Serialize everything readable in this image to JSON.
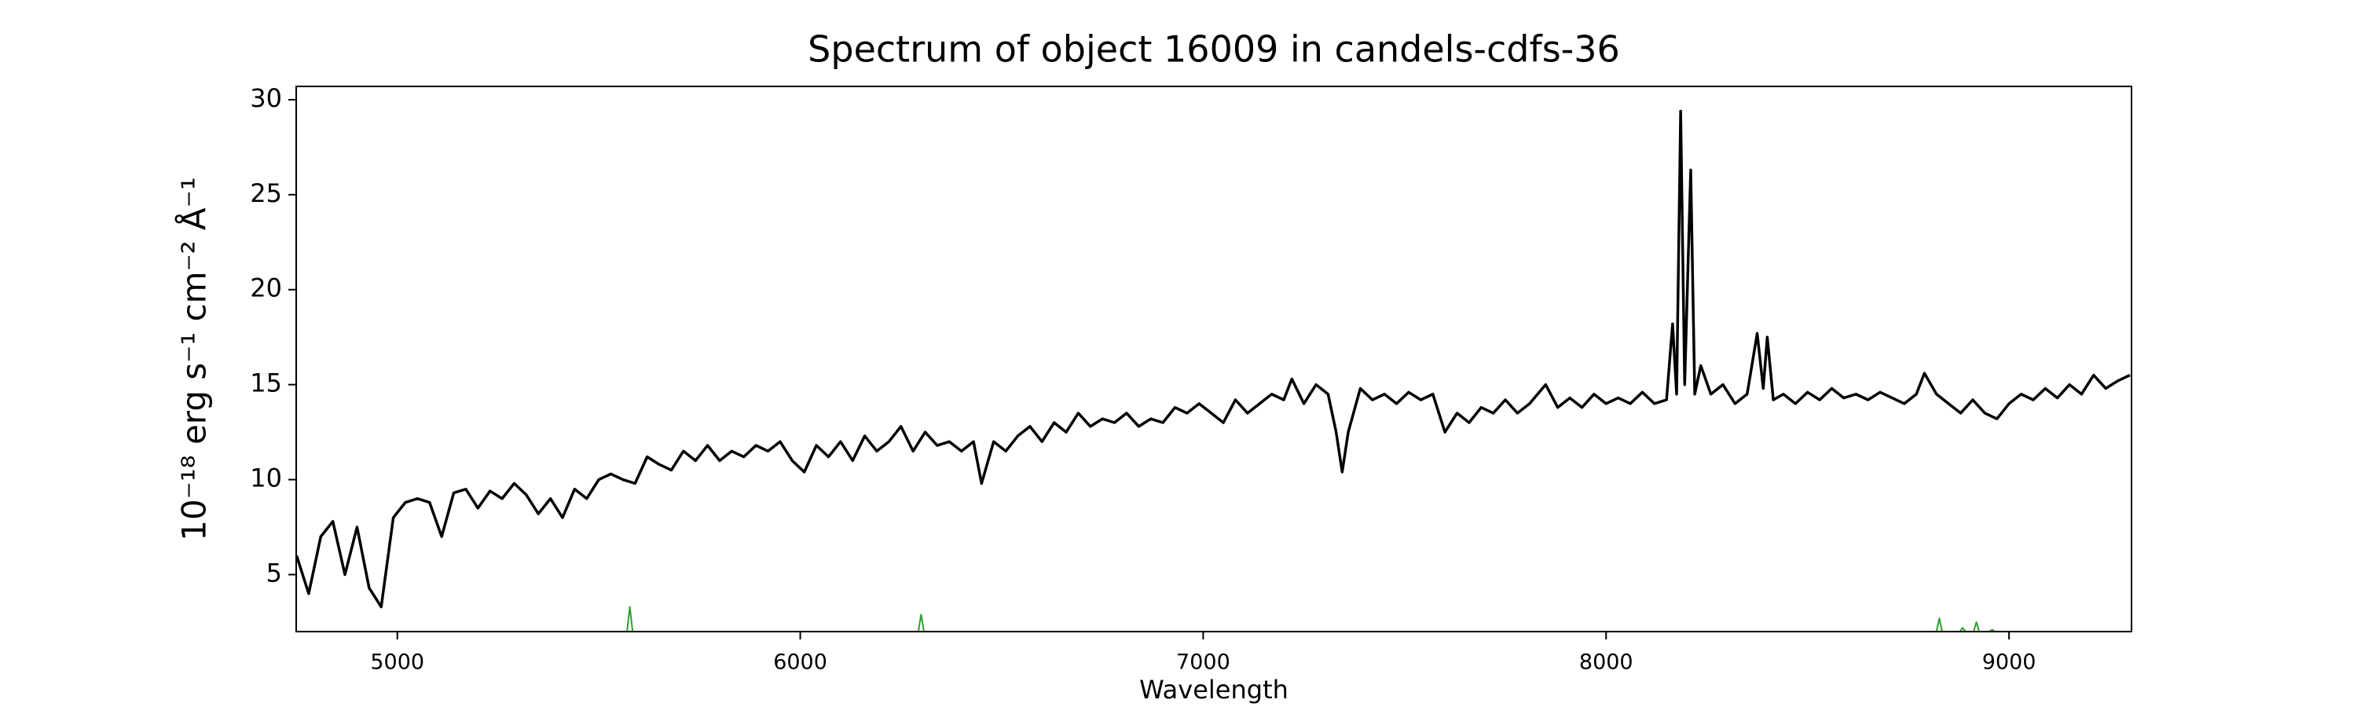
{
  "chart_data": {
    "type": "line",
    "title": "Spectrum of object 16009 in candels-cdfs-36",
    "xlabel": "Wavelength",
    "ylabel": "10⁻¹⁸ erg s⁻¹ cm⁻² Å⁻¹",
    "xlim": [
      4749,
      9304
    ],
    "xticks": [
      5000,
      6000,
      7000,
      8000,
      9000
    ],
    "ylim": [
      2.0,
      30.7
    ],
    "yticks": [
      5,
      10,
      15,
      20,
      25,
      30
    ],
    "grid": false,
    "series": [
      {
        "color": "#000000",
        "x": [
          4750,
          4780,
          4810,
          4840,
          4870,
          4900,
          4930,
          4960,
          4990,
          5020,
          5050,
          5080,
          5110,
          5140,
          5170,
          5200,
          5230,
          5260,
          5290,
          5320,
          5350,
          5380,
          5410,
          5440,
          5470,
          5500,
          5530,
          5560,
          5590,
          5620,
          5650,
          5680,
          5710,
          5740,
          5770,
          5800,
          5830,
          5860,
          5890,
          5920,
          5950,
          5980,
          6010,
          6040,
          6070,
          6100,
          6130,
          6160,
          6190,
          6220,
          6250,
          6280,
          6310,
          6340,
          6370,
          6400,
          6430,
          6450,
          6480,
          6510,
          6540,
          6570,
          6600,
          6630,
          6660,
          6690,
          6720,
          6750,
          6780,
          6810,
          6840,
          6870,
          6900,
          6930,
          6960,
          6990,
          7020,
          7050,
          7080,
          7110,
          7140,
          7170,
          7200,
          7220,
          7250,
          7280,
          7310,
          7330,
          7345,
          7360,
          7390,
          7420,
          7450,
          7480,
          7510,
          7540,
          7570,
          7600,
          7630,
          7660,
          7690,
          7720,
          7750,
          7780,
          7810,
          7850,
          7880,
          7910,
          7940,
          7970,
          8000,
          8030,
          8060,
          8090,
          8120,
          8150,
          8165,
          8175,
          8185,
          8195,
          8210,
          8220,
          8235,
          8260,
          8290,
          8320,
          8350,
          8375,
          8390,
          8400,
          8415,
          8440,
          8470,
          8500,
          8530,
          8560,
          8590,
          8620,
          8650,
          8680,
          8710,
          8740,
          8770,
          8790,
          8820,
          8850,
          8880,
          8910,
          8940,
          8970,
          9000,
          9030,
          9060,
          9090,
          9120,
          9150,
          9180,
          9210,
          9240,
          9270,
          9300
        ],
        "values": [
          6.0,
          4.0,
          7.0,
          7.8,
          5.0,
          7.5,
          4.3,
          3.3,
          8.0,
          8.8,
          9.0,
          8.8,
          7.0,
          9.3,
          9.5,
          8.5,
          9.4,
          9.0,
          9.8,
          9.2,
          8.2,
          9.0,
          8.0,
          9.5,
          9.0,
          10.0,
          10.3,
          10.0,
          9.8,
          11.2,
          10.8,
          10.5,
          11.5,
          11.0,
          11.8,
          11.0,
          11.5,
          11.2,
          11.8,
          11.5,
          12.0,
          11.0,
          10.4,
          11.8,
          11.2,
          12.0,
          11.0,
          12.3,
          11.5,
          12.0,
          12.8,
          11.5,
          12.5,
          11.8,
          12.0,
          11.5,
          12.0,
          9.8,
          12.0,
          11.5,
          12.3,
          12.8,
          12.0,
          13.0,
          12.5,
          13.5,
          12.8,
          13.2,
          13.0,
          13.5,
          12.8,
          13.2,
          13.0,
          13.8,
          13.5,
          14.0,
          13.5,
          13.0,
          14.2,
          13.5,
          14.0,
          14.5,
          14.2,
          15.3,
          14.0,
          15.0,
          14.5,
          12.5,
          10.4,
          12.5,
          14.8,
          14.2,
          14.5,
          14.0,
          14.6,
          14.2,
          14.5,
          12.5,
          13.5,
          13.0,
          13.8,
          13.5,
          14.2,
          13.5,
          14.0,
          15.0,
          13.8,
          14.3,
          13.8,
          14.5,
          14.0,
          14.3,
          14.0,
          14.6,
          14.0,
          14.2,
          18.2,
          14.5,
          29.4,
          15.0,
          26.3,
          14.5,
          16.0,
          14.5,
          15.0,
          14.0,
          14.5,
          17.7,
          14.8,
          17.5,
          14.2,
          14.5,
          14.0,
          14.6,
          14.2,
          14.8,
          14.3,
          14.5,
          14.2,
          14.6,
          14.3,
          14.0,
          14.5,
          15.6,
          14.5,
          14.0,
          13.5,
          14.2,
          13.5,
          13.2,
          14.0,
          14.5,
          14.2,
          14.8,
          14.3,
          15.0,
          14.5,
          15.5,
          14.8,
          15.2,
          15.5
        ]
      },
      {
        "color": "#2ca02c",
        "x": [
          5570,
          5577,
          5584,
          6293,
          6300,
          6307,
          8820,
          8827,
          8834,
          8878,
          8885,
          8892,
          8912,
          8919,
          8926,
          8951,
          8958,
          8965
        ],
        "values": [
          2.0,
          3.3,
          2.0,
          2.0,
          2.9,
          2.0,
          2.0,
          2.7,
          2.0,
          2.0,
          2.2,
          2.0,
          2.0,
          2.5,
          2.0,
          2.0,
          2.1,
          2.0
        ]
      }
    ]
  }
}
